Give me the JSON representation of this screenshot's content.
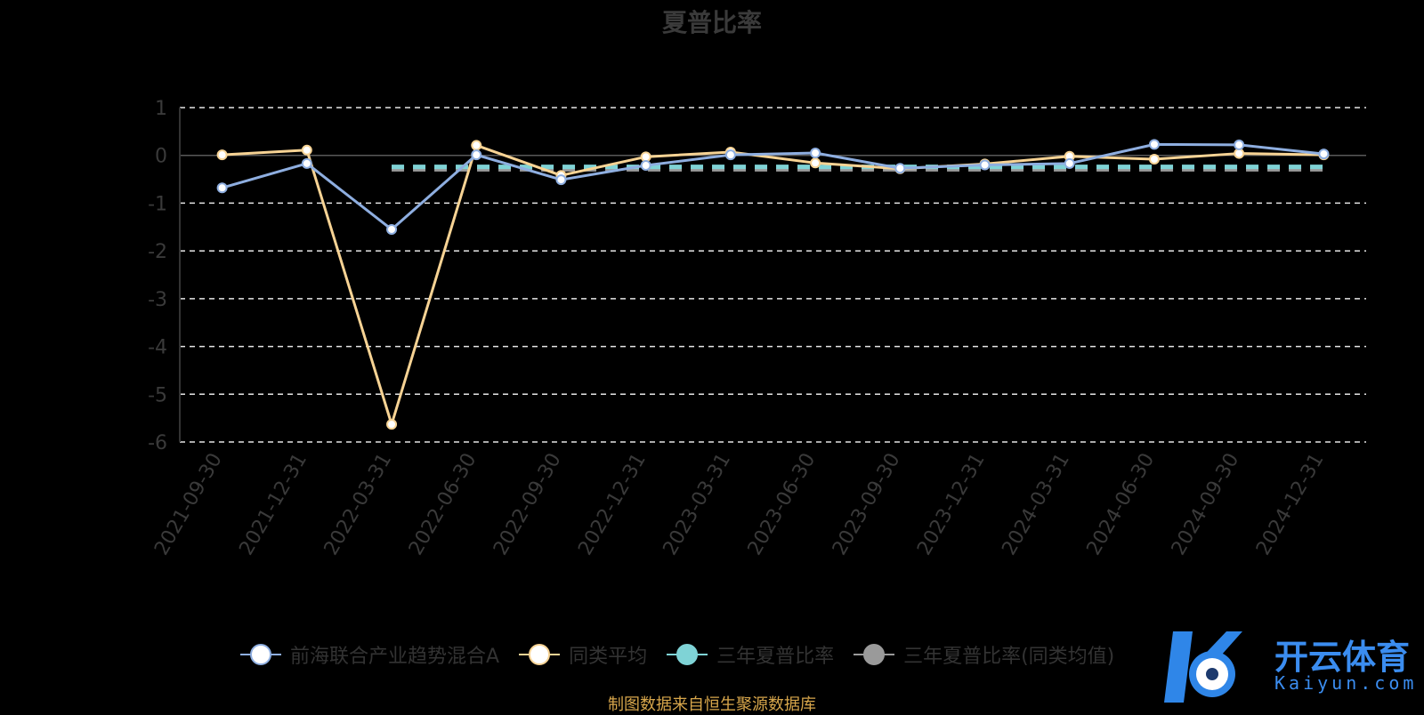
{
  "title": "夏普比率",
  "source_note": "制图数据来自恒生聚源数据库",
  "watermark": {
    "brand": "开云体育",
    "url": "Kaiyun.com"
  },
  "colors": {
    "fund": "#8eaee0",
    "peer": "#f7d394",
    "three_year": "#7fd3d6",
    "three_year_peer": "#9a9a9a",
    "grid": "#ffffff",
    "axis_text": "#3a3a3a"
  },
  "chart_data": {
    "type": "line",
    "title": "夏普比率",
    "categories": [
      "2021-09-30",
      "2021-12-31",
      "2022-03-31",
      "2022-06-30",
      "2022-09-30",
      "2022-12-31",
      "2023-03-31",
      "2023-06-30",
      "2023-09-30",
      "2023-12-31",
      "2024-03-31",
      "2024-06-30",
      "2024-09-30",
      "2024-12-31"
    ],
    "ylim": [
      -6,
      1
    ],
    "yticks": [
      "1",
      "0",
      "-1",
      "-2",
      "-3",
      "-4",
      "-5",
      "-6"
    ],
    "grid": true,
    "legend_position": "bottom",
    "series": [
      {
        "name": "前海联合产业趋势混合A",
        "values": [
          -0.68,
          -0.17,
          -1.55,
          0.01,
          -0.51,
          -0.21,
          0.01,
          0.05,
          -0.27,
          -0.2,
          -0.17,
          0.23,
          0.22,
          0.03
        ]
      },
      {
        "name": "同类平均",
        "values": [
          0.01,
          0.11,
          -5.63,
          0.21,
          -0.42,
          -0.03,
          0.07,
          -0.16,
          -0.28,
          -0.18,
          -0.02,
          -0.08,
          0.04,
          0.01
        ]
      },
      {
        "name": "三年夏普比率",
        "values": [
          null,
          null,
          -0.24,
          -0.24,
          -0.24,
          -0.24,
          -0.24,
          -0.24,
          -0.24,
          -0.24,
          -0.24,
          -0.24,
          -0.24,
          -0.24
        ],
        "dashed": true
      },
      {
        "name": "三年夏普比率(同类均值)",
        "values": [
          null,
          null,
          -0.3,
          -0.3,
          -0.3,
          -0.3,
          -0.3,
          -0.3,
          -0.3,
          -0.3,
          -0.3,
          -0.3,
          -0.3,
          -0.3
        ],
        "dashed": true
      }
    ]
  }
}
